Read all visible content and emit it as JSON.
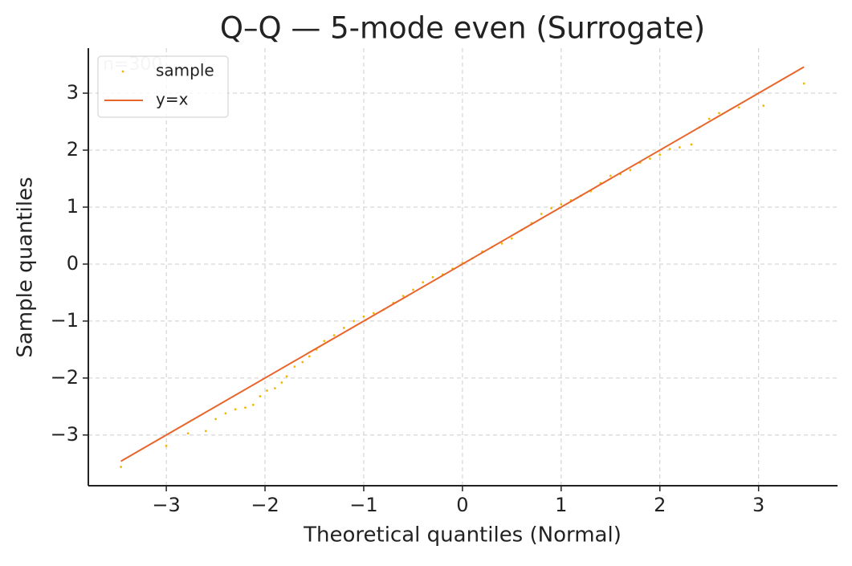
{
  "chart_data": {
    "type": "scatter",
    "title": "Q–Q — 5-mode even (Surrogate)",
    "x_label": "Theoretical quantiles (Normal)",
    "y_label": "Sample quantiles",
    "annotation": "n=300",
    "xlim": [
      -3.79,
      3.8
    ],
    "ylim": [
      -3.89,
      3.79
    ],
    "xticks": [
      {
        "value": -3,
        "label": "−3"
      },
      {
        "value": -2,
        "label": "−2"
      },
      {
        "value": -1,
        "label": "−1"
      },
      0,
      1,
      2,
      3
    ],
    "yticks": [
      {
        "value": -3,
        "label": "−3"
      },
      {
        "value": -2,
        "label": "−2"
      },
      {
        "value": -1,
        "label": "−1"
      },
      0,
      1,
      2,
      3
    ],
    "grid": true,
    "legend": "upper left",
    "series": [
      {
        "name": "sample",
        "color": "#f2b705",
        "mode": "markers",
        "x": [
          -3.46,
          -3.0,
          -2.78,
          -2.6,
          -2.5,
          -2.4,
          -2.3,
          -2.2,
          -2.12,
          -2.05,
          -1.98,
          -1.9,
          -1.83,
          -1.78,
          -1.7,
          -1.62,
          -1.55,
          -1.48,
          -1.4,
          -1.3,
          -1.2,
          -1.1,
          -1.0,
          -0.9,
          -0.8,
          -0.7,
          -0.6,
          -0.5,
          -0.4,
          -0.3,
          -0.2,
          -0.1,
          0,
          0.1,
          0.2,
          0.3,
          0.4,
          0.5,
          0.6,
          0.7,
          0.8,
          0.9,
          1.0,
          1.1,
          1.2,
          1.3,
          1.4,
          1.5,
          1.6,
          1.7,
          1.8,
          1.9,
          2.0,
          2.1,
          2.2,
          2.32,
          2.4,
          2.5,
          2.6,
          2.8,
          3.05,
          3.46
        ],
        "y": [
          -3.56,
          -3.19,
          -2.97,
          -2.93,
          -2.72,
          -2.62,
          -2.55,
          -2.52,
          -2.47,
          -2.32,
          -2.22,
          -2.18,
          -2.08,
          -1.97,
          -1.8,
          -1.72,
          -1.62,
          -1.5,
          -1.35,
          -1.25,
          -1.12,
          -1.0,
          -0.92,
          -0.86,
          -0.8,
          -0.68,
          -0.56,
          -0.45,
          -0.32,
          -0.23,
          -0.18,
          -0.08,
          0.02,
          0.1,
          0.22,
          0.3,
          0.36,
          0.45,
          0.6,
          0.72,
          0.88,
          0.98,
          1.05,
          1.12,
          1.2,
          1.28,
          1.42,
          1.55,
          1.58,
          1.65,
          1.78,
          1.85,
          1.92,
          2.02,
          2.05,
          2.1,
          2.4,
          2.55,
          2.65,
          2.75,
          2.78,
          3.17
        ]
      },
      {
        "name": "y=x",
        "color": "#e8652b",
        "mode": "line",
        "x": [
          -3.46,
          3.46
        ],
        "y": [
          -3.46,
          3.46
        ]
      }
    ]
  }
}
